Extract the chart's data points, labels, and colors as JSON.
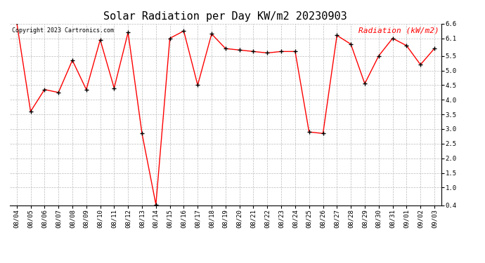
{
  "title": "Solar Radiation per Day KW/m2 20230903",
  "copyright": "Copyright 2023 Cartronics.com",
  "legend_label": "Radiation (kW/m2)",
  "dates": [
    "08/04",
    "08/05",
    "08/06",
    "08/07",
    "08/08",
    "08/09",
    "08/10",
    "08/11",
    "08/12",
    "08/13",
    "08/14",
    "08/15",
    "08/16",
    "08/17",
    "08/18",
    "08/19",
    "08/20",
    "08/21",
    "08/22",
    "08/23",
    "08/24",
    "08/25",
    "08/26",
    "08/27",
    "08/28",
    "08/29",
    "08/30",
    "08/31",
    "09/01",
    "09/02",
    "09/03"
  ],
  "values": [
    6.65,
    3.6,
    4.35,
    4.25,
    5.35,
    4.35,
    6.05,
    4.4,
    6.3,
    2.85,
    0.42,
    6.1,
    6.35,
    4.5,
    6.25,
    5.75,
    5.7,
    5.65,
    5.6,
    5.65,
    5.65,
    2.9,
    2.85,
    6.2,
    5.9,
    4.55,
    5.5,
    6.1,
    5.85,
    5.2,
    5.75
  ],
  "line_color": "red",
  "marker_color": "black",
  "title_color": "black",
  "legend_color": "red",
  "copyright_color": "black",
  "bg_color": "white",
  "grid_color": "#bbbbbb",
  "ylim": [
    0.4,
    6.6
  ],
  "yticks": [
    0.4,
    1.0,
    1.5,
    2.0,
    2.5,
    3.0,
    3.5,
    4.0,
    4.5,
    5.0,
    5.5,
    6.1,
    6.6
  ],
  "title_fontsize": 11,
  "copyright_fontsize": 6,
  "legend_fontsize": 8,
  "axis_fontsize": 6.5
}
